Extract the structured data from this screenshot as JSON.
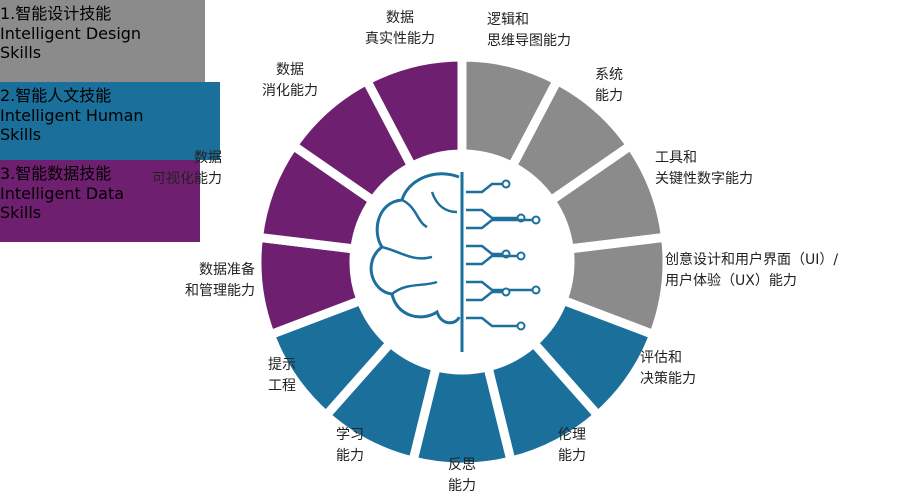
{
  "groups": [
    {
      "title": "1.智能设计技能",
      "subtitle": [
        "Intelligent Design",
        "Skills"
      ],
      "segments": [
        [
          "逻辑和",
          "思维导图能力"
        ],
        [
          "系统",
          "能力"
        ],
        [
          "工具和",
          "关键性数字能力"
        ],
        [
          "创意设计和用户界面（UI）/",
          "用户体验（UX）能力"
        ]
      ]
    },
    {
      "title": "2.智能人文技能",
      "subtitle": [
        "Intelligent Human",
        "Skills"
      ],
      "segments": [
        [
          "评估和",
          "决策能力"
        ],
        [
          "伦理",
          "能力"
        ],
        [
          "反思",
          "能力"
        ],
        [
          "学习",
          "能力"
        ],
        [
          "提示",
          "工程"
        ]
      ]
    },
    {
      "title": "3.智能数据技能",
      "subtitle": [
        "Intelligent Data",
        "Skills"
      ],
      "segments": [
        [
          "数据准备",
          "和管理能力"
        ],
        [
          "数据",
          "可视化能力"
        ],
        [
          "数据",
          "消化能力"
        ],
        [
          "数据",
          "真实性能力"
        ]
      ]
    }
  ]
}
